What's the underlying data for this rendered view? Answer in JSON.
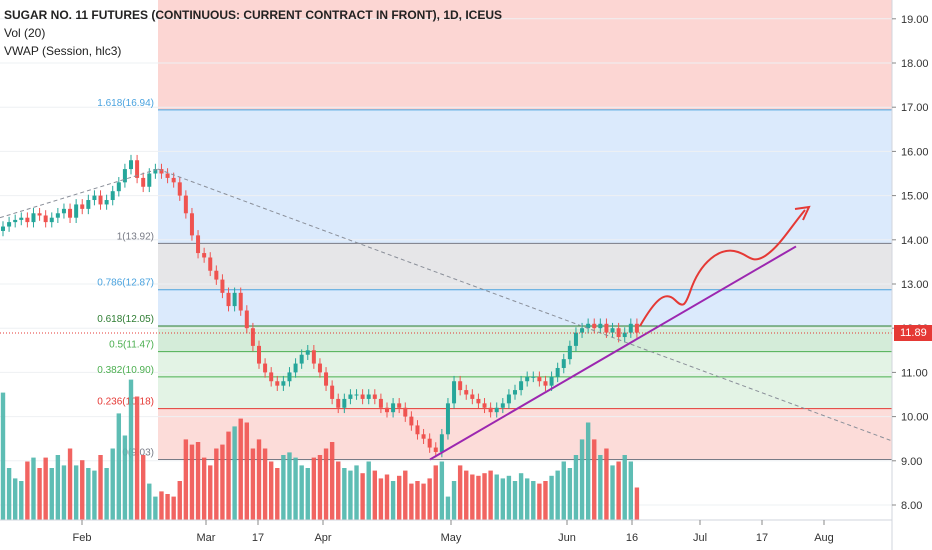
{
  "header": {
    "title": "SUGAR NO. 11 FUTURES (CONTINUOUS: CURRENT CONTRACT IN FRONT), 1D, ICEUS",
    "indicators": [
      "Vol (20)",
      "VWAP (Session, hlc3)"
    ]
  },
  "current_price_label": "11.89",
  "colors": {
    "up": "#26a69a",
    "down": "#ef5350",
    "fib_top": "#4aa3df",
    "fib_mid": "#787b86",
    "fib_green": "#4caf50",
    "fib_red": "#e53935",
    "trendline": "#9c27b0",
    "projection": "#e53935",
    "price_badge": "#e53935"
  },
  "chart_data": {
    "type": "candlestick",
    "price_axis": {
      "ticks": [
        8.0,
        9.0,
        10.0,
        11.0,
        12.0,
        13.0,
        14.0,
        15.0,
        16.0,
        17.0,
        18.0,
        19.0
      ],
      "ylim": [
        7.7,
        19.3
      ]
    },
    "time_axis": {
      "labels": [
        "Feb",
        "Mar",
        "17",
        "Apr",
        "May",
        "Jun",
        "16",
        "Jul",
        "17",
        "Aug"
      ]
    },
    "fibonacci": [
      {
        "label": "1.618(16.94)",
        "value": 16.94,
        "color": "#4aa3df"
      },
      {
        "label": "1(13.92)",
        "value": 13.92,
        "color": "#787b86"
      },
      {
        "label": "0.786(12.87)",
        "value": 12.87,
        "color": "#4aa3df"
      },
      {
        "label": "0.618(12.05)",
        "value": 12.05,
        "color": "#2e7d32"
      },
      {
        "label": "0.5(11.47)",
        "value": 11.47,
        "color": "#4caf50"
      },
      {
        "label": "0.382(10.90)",
        "value": 10.9,
        "color": "#4caf50"
      },
      {
        "label": "0.236(10.18)",
        "value": 10.18,
        "color": "#e53935"
      },
      {
        "label": "0(9.03)",
        "value": 9.03,
        "color": "#787b86"
      }
    ],
    "last_price": 11.89,
    "price_path": [
      14.3,
      14.4,
      14.45,
      14.5,
      14.4,
      14.6,
      14.55,
      14.4,
      14.5,
      14.6,
      14.7,
      14.5,
      14.8,
      14.7,
      14.9,
      15.0,
      14.8,
      14.9,
      15.1,
      15.3,
      15.6,
      15.8,
      15.4,
      15.2,
      15.5,
      15.6,
      15.5,
      15.4,
      15.3,
      15.0,
      14.6,
      14.1,
      13.7,
      13.6,
      13.3,
      13.1,
      12.8,
      12.5,
      12.8,
      12.4,
      12.0,
      11.6,
      11.2,
      11.0,
      10.8,
      10.7,
      10.8,
      11.0,
      11.2,
      11.4,
      11.5,
      11.2,
      11.0,
      10.7,
      10.4,
      10.2,
      10.4,
      10.5,
      10.5,
      10.4,
      10.5,
      10.4,
      10.2,
      10.1,
      10.3,
      10.2,
      10.0,
      9.8,
      9.6,
      9.5,
      9.3,
      9.2,
      9.6,
      10.3,
      10.8,
      10.6,
      10.5,
      10.4,
      10.3,
      10.2,
      10.1,
      10.2,
      10.3,
      10.5,
      10.6,
      10.8,
      10.9,
      10.9,
      10.8,
      10.7,
      10.9,
      11.1,
      11.3,
      11.6,
      11.9,
      12.0,
      12.1,
      12.0,
      12.1,
      11.9,
      12.0,
      11.8,
      11.9,
      12.1,
      11.9
    ],
    "volume": [
      0.98,
      0.4,
      0.32,
      0.3,
      0.45,
      0.48,
      0.4,
      0.48,
      0.4,
      0.5,
      0.42,
      0.55,
      0.42,
      0.46,
      0.4,
      0.38,
      0.5,
      0.4,
      0.55,
      0.82,
      0.65,
      1.08,
      0.95,
      0.5,
      0.28,
      0.18,
      0.22,
      0.2,
      0.18,
      0.3,
      0.62,
      0.58,
      0.6,
      0.48,
      0.42,
      0.55,
      0.58,
      0.68,
      0.72,
      0.78,
      0.75,
      0.55,
      0.62,
      0.55,
      0.45,
      0.4,
      0.5,
      0.52,
      0.48,
      0.42,
      0.4,
      0.48,
      0.5,
      0.55,
      0.6,
      0.45,
      0.4,
      0.38,
      0.42,
      0.36,
      0.45,
      0.38,
      0.32,
      0.35,
      0.3,
      0.34,
      0.38,
      0.28,
      0.3,
      0.28,
      0.32,
      0.42,
      0.45,
      0.18,
      0.3,
      0.42,
      0.38,
      0.35,
      0.34,
      0.36,
      0.38,
      0.35,
      0.32,
      0.34,
      0.3,
      0.36,
      0.32,
      0.3,
      0.28,
      0.3,
      0.34,
      0.38,
      0.45,
      0.4,
      0.5,
      0.62,
      0.75,
      0.62,
      0.5,
      0.55,
      0.42,
      0.45,
      0.5,
      0.45,
      0.25
    ]
  }
}
